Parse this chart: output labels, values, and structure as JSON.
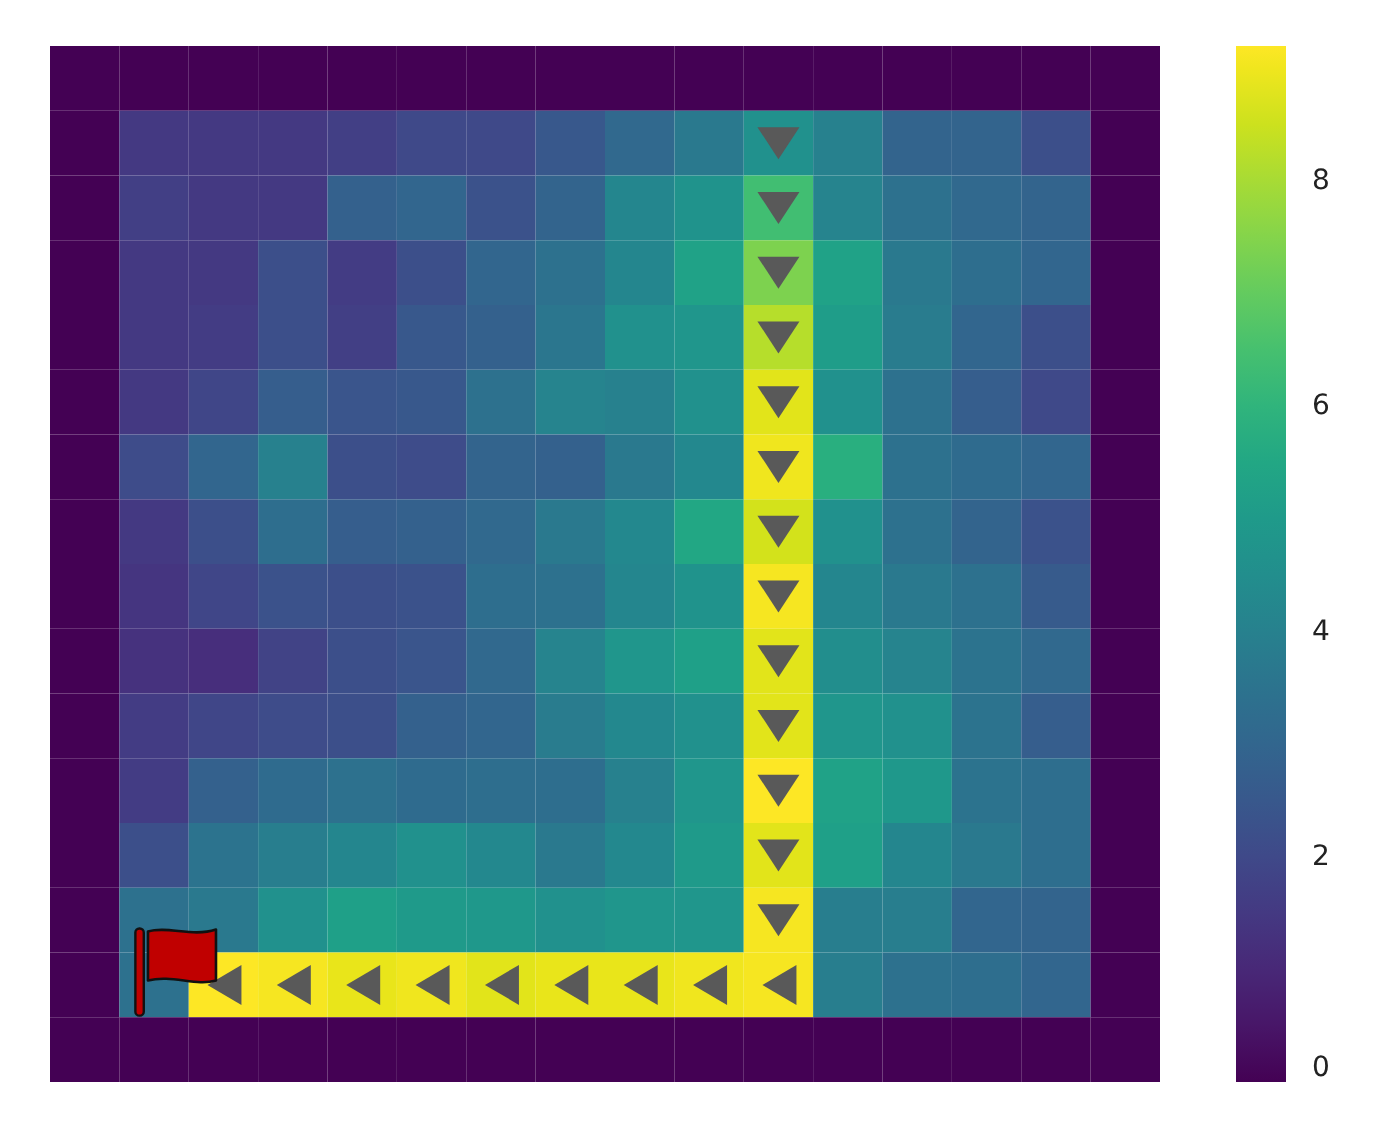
{
  "chart_data": {
    "type": "heatmap",
    "categories": [
      null,
      null,
      null,
      null,
      null,
      null,
      null,
      null,
      null,
      null,
      null,
      null,
      null,
      null,
      null,
      null
    ],
    "y_categories": [
      null,
      null,
      null,
      null,
      null,
      null,
      null,
      null,
      null,
      null,
      null,
      null,
      null,
      null,
      null,
      null
    ],
    "cells": [
      [
        0,
        0,
        0,
        0,
        0,
        0,
        0,
        0,
        0,
        0,
        0,
        0,
        0,
        0,
        0,
        0
      ],
      [
        0,
        1.5,
        1.5,
        1.5,
        1.7,
        2.0,
        2.0,
        2.5,
        3.1,
        3.7,
        4.6,
        4.0,
        2.9,
        2.9,
        2.2,
        0
      ],
      [
        0,
        1.7,
        1.5,
        1.5,
        2.8,
        3.0,
        2.3,
        2.9,
        4.2,
        4.7,
        6.4,
        4.1,
        3.4,
        3.1,
        2.9,
        0
      ],
      [
        0,
        1.5,
        1.5,
        2.2,
        1.6,
        2.2,
        3.0,
        3.4,
        4.2,
        5.3,
        7.4,
        5.3,
        3.7,
        3.3,
        3.0,
        0
      ],
      [
        0,
        1.5,
        1.6,
        2.2,
        1.7,
        2.5,
        2.8,
        3.6,
        4.6,
        4.8,
        8.2,
        5.1,
        3.8,
        3.0,
        2.2,
        0
      ],
      [
        0,
        1.5,
        1.9,
        2.7,
        2.4,
        2.5,
        3.4,
        4.1,
        4.0,
        4.6,
        8.8,
        4.6,
        3.4,
        2.7,
        2.0,
        0
      ],
      [
        0,
        2.1,
        3.0,
        4.0,
        2.2,
        2.1,
        2.9,
        2.8,
        3.7,
        4.3,
        9.0,
        5.8,
        3.4,
        3.2,
        3.0,
        0
      ],
      [
        0,
        1.5,
        2.2,
        3.3,
        2.7,
        2.8,
        3.1,
        3.7,
        4.3,
        5.5,
        8.6,
        4.6,
        3.4,
        2.9,
        2.3,
        0
      ],
      [
        0,
        1.4,
        1.9,
        2.3,
        2.2,
        2.3,
        3.3,
        3.4,
        4.2,
        4.7,
        9.1,
        4.2,
        3.7,
        3.4,
        2.6,
        0
      ],
      [
        0,
        1.3,
        1.2,
        1.8,
        2.2,
        2.4,
        3.1,
        4.1,
        4.8,
        5.2,
        8.8,
        4.5,
        4.1,
        3.5,
        3.1,
        0
      ],
      [
        0,
        1.6,
        1.9,
        2.1,
        2.2,
        2.8,
        3.0,
        3.8,
        4.3,
        4.6,
        8.8,
        4.8,
        4.6,
        3.5,
        2.7,
        0
      ],
      [
        0,
        1.6,
        2.8,
        3.2,
        3.4,
        3.2,
        3.3,
        3.3,
        4.0,
        4.8,
        9.2,
        5.3,
        4.9,
        3.5,
        3.3,
        0
      ],
      [
        0,
        2.2,
        3.5,
        3.9,
        4.2,
        4.6,
        4.3,
        3.7,
        4.3,
        5.0,
        8.8,
        5.2,
        4.2,
        3.7,
        3.3,
        0
      ],
      [
        0,
        3.4,
        3.7,
        4.6,
        5.2,
        5.0,
        4.9,
        4.6,
        4.8,
        4.8,
        9.1,
        3.9,
        3.9,
        3.0,
        2.9,
        0
      ],
      [
        0,
        3.4,
        9.2,
        9.1,
        8.9,
        9.0,
        8.8,
        8.9,
        8.9,
        9.0,
        9.1,
        3.9,
        3.4,
        3.3,
        3.0,
        0
      ],
      [
        0,
        0,
        0,
        0,
        0,
        0,
        0,
        0,
        0,
        0,
        0,
        0,
        0,
        0,
        0,
        0
      ]
    ],
    "clim": [
      0,
      9.2
    ],
    "cticks": [
      0,
      2,
      4,
      6,
      8
    ],
    "tick_labels": false
  }
}
